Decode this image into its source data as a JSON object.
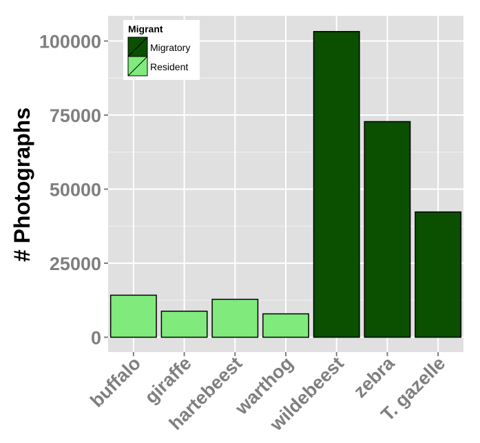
{
  "chart_data": {
    "type": "bar",
    "categories": [
      "buffalo",
      "giraffe",
      "hartebeest",
      "warthog",
      "wildebeest",
      "zebra",
      "T. gazelle"
    ],
    "values": [
      14200,
      8800,
      12800,
      7900,
      103200,
      72800,
      42300
    ],
    "groups": [
      "Resident",
      "Resident",
      "Resident",
      "Resident",
      "Migratory",
      "Migratory",
      "Migratory"
    ],
    "ylabel": "# Photographs",
    "xlabel": "",
    "yticks": [
      0,
      25000,
      50000,
      75000,
      100000
    ],
    "ylim": [
      -5000,
      108500
    ],
    "grid": true,
    "legend": {
      "title": "Migrant",
      "position": "top-left",
      "entries": [
        {
          "name": "Migratory",
          "color": "#0b4f00"
        },
        {
          "name": "Resident",
          "color": "#80ea7c"
        }
      ]
    }
  },
  "colors": {
    "panel": "#e0e0e0",
    "grid": "#ffffff",
    "Migratory": "#0b4f00",
    "Resident": "#80ea7c",
    "bar_stroke": "#000000"
  }
}
